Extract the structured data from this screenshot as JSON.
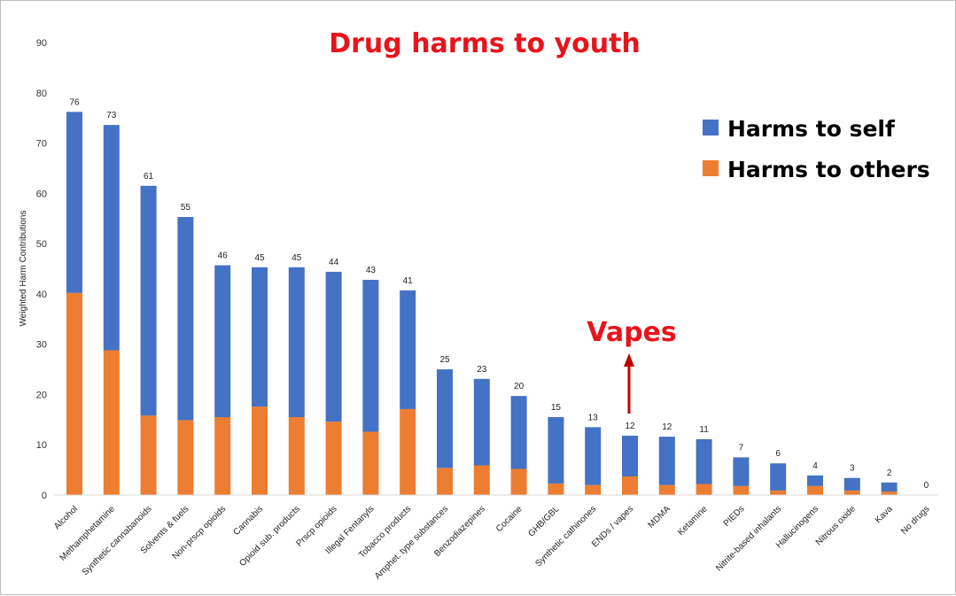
{
  "chart_data": {
    "type": "bar",
    "stacked": true,
    "title": "Drug harms to youth",
    "ylabel": "Weighted Harm Contributions",
    "xlabel": "",
    "ylim": [
      0,
      90
    ],
    "yticks": [
      0,
      10,
      20,
      30,
      40,
      50,
      60,
      70,
      80,
      90
    ],
    "grid": false,
    "legend_position": "top-right",
    "categories": [
      "Alcohol",
      "Methamphetamine",
      "Synthetic cannabanoids",
      "Solvents & fuels",
      "Non-prscp opioids",
      "Cannabis",
      "Opioid sub. products",
      "Prscp opioids",
      "Illegal Fentanyls",
      "Tobacco products",
      "Amphet. type substances",
      "Benzodiazepines",
      "Cocaine",
      "GHB/GBL",
      "Synthetic cathinones",
      "ENDs / vapes",
      "MDMA",
      "Ketamine",
      "PIEDs",
      "Nitrite-based inhalants",
      "Hallucinogens",
      "Nitrous oxide",
      "Kava",
      "No drugs"
    ],
    "series": [
      {
        "name": "Harms to others",
        "color": "#ed7d31",
        "values": [
          40.2,
          28.8,
          15.8,
          14.9,
          15.5,
          17.6,
          15.5,
          14.6,
          12.6,
          17.1,
          5.4,
          5.9,
          5.2,
          2.3,
          2.0,
          3.7,
          2.0,
          2.2,
          1.8,
          0.9,
          1.8,
          0.9,
          0.7,
          0
        ]
      },
      {
        "name": "Harms to self",
        "color": "#4472c4",
        "values": [
          36.0,
          44.8,
          45.7,
          40.4,
          30.2,
          27.7,
          29.8,
          29.8,
          30.2,
          23.6,
          19.6,
          17.2,
          14.5,
          13.2,
          11.5,
          8.1,
          9.6,
          8.9,
          5.7,
          5.4,
          2.1,
          2.5,
          1.8,
          0
        ]
      }
    ],
    "totals": [
      "76",
      "73",
      "61",
      "55",
      "46",
      "45",
      "45",
      "44",
      "43",
      "41",
      "25",
      "23",
      "20",
      "15",
      "13",
      "12",
      "12",
      "11",
      "7",
      "6",
      "4",
      "3",
      "2",
      "0"
    ],
    "legend": [
      {
        "label": "Harms to self",
        "color": "#4472c4"
      },
      {
        "label": "Harms to others",
        "color": "#ed7d31"
      }
    ],
    "annotations": [
      {
        "text": "Vapes",
        "target_category": "ENDs / vapes",
        "color": "#e8141b"
      }
    ]
  }
}
